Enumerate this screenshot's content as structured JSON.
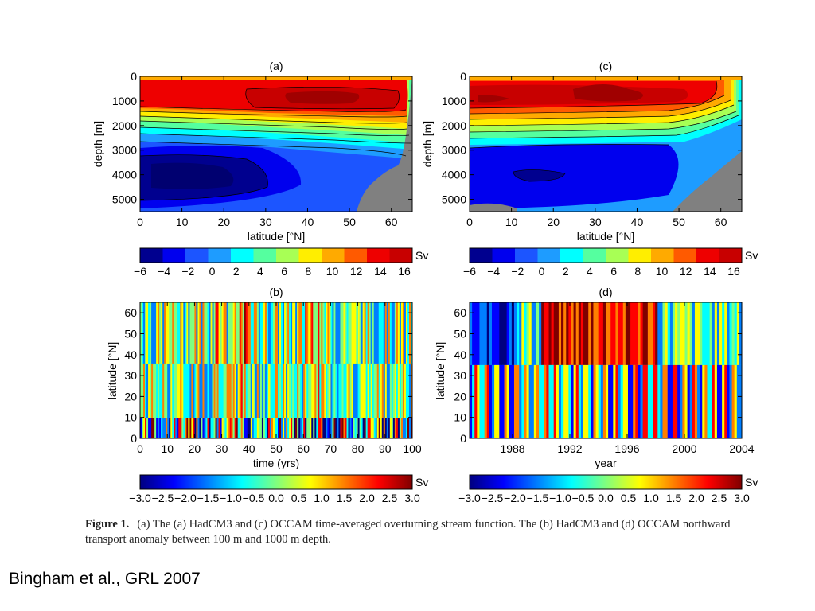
{
  "caption": {
    "label": "Figure 1.",
    "text": "(a) The (a) HadCM3 and (c) OCCAM time-averaged overturning stream function. The (b) HadCM3 and (d) OCCAM northward transport anomaly between 100 m and 1000 m depth."
  },
  "citation": "Bingham et al., GRL 2007",
  "colors": {
    "sections_scale": [
      "#00008f",
      "#0000ee",
      "#1c55ff",
      "#1e9cff",
      "#00ffff",
      "#55ff9f",
      "#a8ff55",
      "#ffee00",
      "#ffaa00",
      "#ff5a00",
      "#ee0000",
      "#c80000"
    ],
    "anomaly_scale": [
      "#00007f",
      "#0000ff",
      "#007fff",
      "#00ffff",
      "#7fff7f",
      "#ffff00",
      "#ff7f00",
      "#ff0000",
      "#7f0000"
    ],
    "land": "#808080"
  },
  "chart_data": [
    {
      "panel": "(a)",
      "type": "heatmap",
      "title": "(a)",
      "xlabel": "latitude [°N]",
      "ylabel": "depth [m]",
      "xlim": [
        0,
        65
      ],
      "ylim": [
        0,
        5500
      ],
      "y_inverted": true,
      "xticks": [
        0,
        10,
        20,
        30,
        40,
        50,
        60
      ],
      "yticks": [
        0,
        1000,
        2000,
        3000,
        4000,
        5000
      ],
      "colorbar": {
        "label": "Sv",
        "ticks": [
          "−6",
          "−4",
          "−2",
          "0",
          "2",
          "4",
          "6",
          "8",
          "10",
          "12",
          "14",
          "16"
        ],
        "range": [
          -6,
          18
        ]
      },
      "features": {
        "upper_cell_max_sv": 16,
        "upper_cell_core_lat": [
          28,
          62
        ],
        "upper_cell_core_depth": [
          800,
          1200
        ],
        "lower_cell_min_sv": -6,
        "lower_cell_core_lat": [
          0,
          25
        ],
        "lower_cell_core_depth": [
          3700,
          4600
        ],
        "zero_line_depth": 3000,
        "topography": "present at high latitude and depth"
      }
    },
    {
      "panel": "(c)",
      "type": "heatmap",
      "title": "(c)",
      "xlabel": "latitude [°N]",
      "ylabel": "depth [m]",
      "xlim": [
        0,
        65
      ],
      "ylim": [
        0,
        5500
      ],
      "y_inverted": true,
      "xticks": [
        0,
        10,
        20,
        30,
        40,
        50,
        60
      ],
      "yticks": [
        0,
        1000,
        2000,
        3000,
        4000,
        5000
      ],
      "colorbar": {
        "label": "Sv",
        "ticks": [
          "−6",
          "−4",
          "−2",
          "0",
          "2",
          "4",
          "6",
          "8",
          "10",
          "12",
          "14",
          "16"
        ],
        "range": [
          -6,
          18
        ]
      },
      "features": {
        "upper_cell_max_sv": 16,
        "upper_cell_core_lat": [
          0,
          46
        ],
        "upper_cell_core_depth": [
          700,
          1200
        ],
        "lower_cell_min_sv": -6,
        "lower_cell_core_lat": [
          14,
          22
        ],
        "lower_cell_core_depth": [
          3900,
          4300
        ],
        "zero_line_depth": 2900,
        "topography": "present at high latitude and depth"
      }
    },
    {
      "panel": "(b)",
      "type": "heatmap",
      "title": "(b)",
      "xlabel": "time (yrs)",
      "ylabel": "latitude [°N]",
      "xlim": [
        0,
        100
      ],
      "ylim": [
        0,
        65
      ],
      "xticks": [
        0,
        10,
        20,
        30,
        40,
        50,
        60,
        70,
        80,
        90,
        100
      ],
      "yticks": [
        0,
        10,
        20,
        30,
        40,
        50,
        60
      ],
      "colorbar": {
        "label": "Sv",
        "ticks": [
          "−3.0",
          "−2.5",
          "−2.0",
          "−1.5",
          "−1.0",
          "−0.5",
          "0.0",
          "0.5",
          "1.0",
          "1.5",
          "2.0",
          "2.5",
          "3.0"
        ],
        "range": [
          -3,
          3
        ]
      },
      "features": {
        "pattern": "high-frequency vertical stripes; strongest variability below 10°N",
        "positive_events_years": [
          29,
          38,
          62,
          64
        ]
      }
    },
    {
      "panel": "(d)",
      "type": "heatmap",
      "title": "(d)",
      "xlabel": "year",
      "ylabel": "latitude [°N]",
      "xlim": [
        1985,
        2004
      ],
      "ylim": [
        0,
        65
      ],
      "xticks": [
        1988,
        1992,
        1996,
        2000,
        2004
      ],
      "yticks": [
        0,
        10,
        20,
        30,
        40,
        50,
        60
      ],
      "colorbar": {
        "label": "Sv",
        "ticks": [
          "−3.0",
          "−2.5",
          "−2.0",
          "−1.5",
          "−1.0",
          "−0.5",
          "0.0",
          "0.5",
          "1.0",
          "1.5",
          "2.0",
          "2.5",
          "3.0"
        ],
        "range": [
          -3,
          3
        ]
      },
      "features": {
        "positive_band": {
          "from_year": 1990,
          "to_year": 1998,
          "lat_from": 40,
          "lat_to": 65
        },
        "negative_band_early": {
          "from_year": 1985,
          "to_year": 1988,
          "lat_from": 35,
          "lat_to": 65
        },
        "pattern": "alternating positive/negative stripes below 30°N"
      }
    }
  ]
}
